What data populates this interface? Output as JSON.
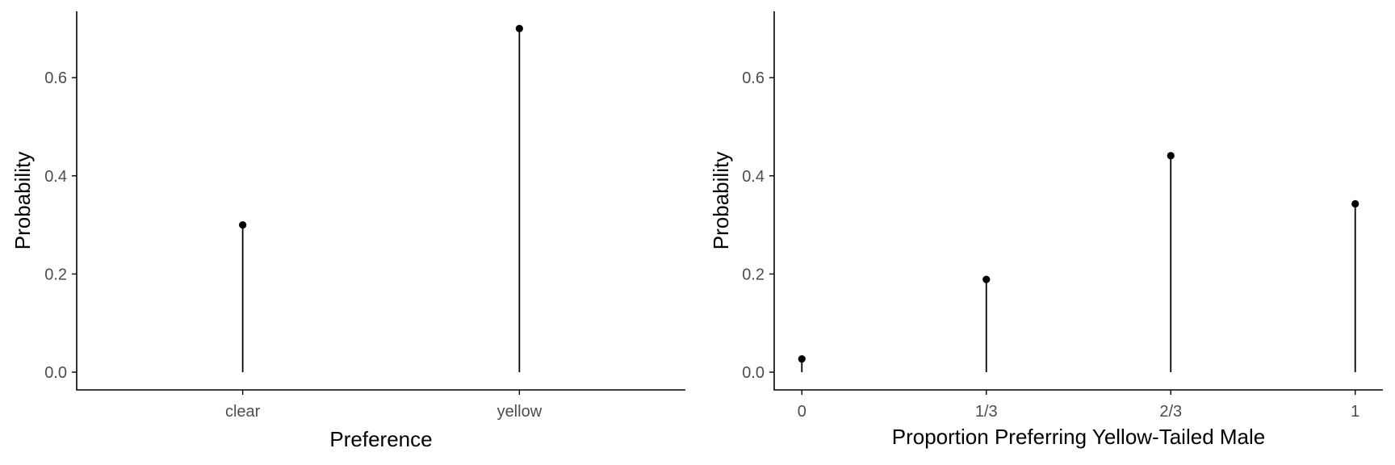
{
  "chart_data": [
    {
      "type": "lollipop",
      "title": "",
      "xlabel": "Preference",
      "ylabel": "Probability",
      "categories": [
        "clear",
        "yellow"
      ],
      "values": [
        0.3,
        0.7
      ],
      "ylim": [
        0,
        0.72
      ],
      "yticks": [
        0.0,
        0.2,
        0.4,
        0.6
      ],
      "ytick_labels": [
        "0.0",
        "0.2",
        "0.4",
        "0.6"
      ],
      "grid": false,
      "legend": "none"
    },
    {
      "type": "lollipop",
      "title": "",
      "xlabel": "Proportion Preferring Yellow-Tailed Male",
      "ylabel": "Probability",
      "categories": [
        "0",
        "1/3",
        "2/3",
        "1"
      ],
      "values": [
        0.027,
        0.189,
        0.441,
        0.343
      ],
      "ylim": [
        0,
        0.72
      ],
      "yticks": [
        0.0,
        0.2,
        0.4,
        0.6
      ],
      "ytick_labels": [
        "0.0",
        "0.2",
        "0.4",
        "0.6"
      ],
      "grid": false,
      "legend": "none"
    }
  ],
  "colors": {
    "mark": "#000000",
    "axis": "#000000",
    "tick_text": "#4d4d4d"
  }
}
